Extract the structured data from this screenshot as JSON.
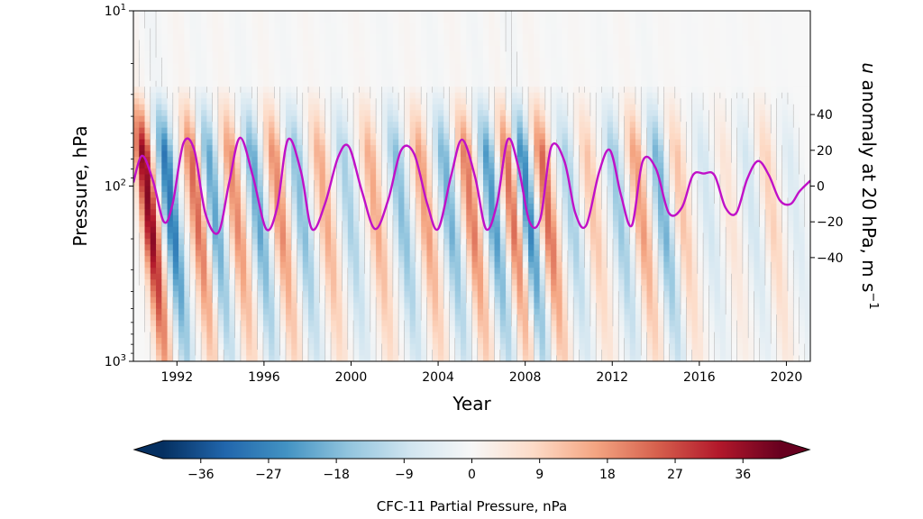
{
  "chart_data": [
    {
      "type": "heatmap",
      "title": "",
      "xlabel": "Year",
      "ylabel": "Pressure, hPa",
      "xlim": [
        1990.0,
        2021.1
      ],
      "ylim": [
        1000,
        10
      ],
      "y_scale": "log",
      "x_ticks": [
        1992,
        1996,
        2000,
        2004,
        2008,
        2012,
        2016,
        2020
      ],
      "y_ticks": [
        {
          "value": 10,
          "base": "10",
          "exp": "1"
        },
        {
          "value": 100,
          "base": "10",
          "exp": "2"
        },
        {
          "value": 1000,
          "base": "10",
          "exp": "3"
        }
      ],
      "field_description_values": {
        "quantity": "CFC-11 partial pressure anomaly",
        "oscillation_centers": [
          1990.6,
          1991.6,
          1992.8,
          1993.6,
          1994.6,
          1995.6,
          1996.6,
          1997.6,
          1998.7,
          1999.8,
          2001.0,
          2002.2,
          2003.3,
          2004.4,
          2005.4,
          2006.4,
          2007.3,
          2008.0,
          2008.9,
          2010.0,
          2011.0,
          2012.2,
          2013.2,
          2014.2,
          2015.1,
          2016.3,
          2017.3,
          2018.3,
          2019.2,
          2020.3
        ],
        "oscillation_signs": [
          1,
          -1,
          1,
          -1,
          1,
          -1,
          1,
          -1,
          1,
          -1,
          1,
          -1,
          1,
          -1,
          1,
          -1,
          1,
          -1,
          1,
          -1,
          1,
          -1,
          1,
          -1,
          1,
          -1,
          1,
          -1,
          1,
          -1
        ],
        "peak_amplitudes_nPa": [
          38,
          30,
          24,
          22,
          20,
          22,
          20,
          18,
          16,
          14,
          16,
          18,
          18,
          20,
          22,
          24,
          24,
          28,
          24,
          14,
          12,
          16,
          18,
          20,
          12,
          8,
          6,
          8,
          10,
          6
        ]
      }
    },
    {
      "type": "line",
      "series": [
        {
          "name": "",
          "color": "#c010c8",
          "x": [
            1990.0,
            1990.4,
            1990.9,
            1991.4,
            1991.8,
            1992.3,
            1992.8,
            1993.3,
            1993.9,
            1994.4,
            1994.9,
            1995.5,
            1996.1,
            1996.6,
            1997.1,
            1997.7,
            1998.2,
            1998.8,
            1999.4,
            1999.9,
            2000.5,
            2001.1,
            2001.7,
            2002.3,
            2002.9,
            2003.5,
            2004.0,
            2004.6,
            2005.1,
            2005.7,
            2006.2,
            2006.7,
            2007.2,
            2007.7,
            2008.2,
            2008.7,
            2009.2,
            2009.8,
            2010.3,
            2010.8,
            2011.4,
            2011.9,
            2012.4,
            2012.9,
            2013.4,
            2014.0,
            2014.6,
            2015.2,
            2015.7,
            2016.2,
            2016.7,
            2017.2,
            2017.7,
            2018.2,
            2018.7,
            2019.2,
            2019.7,
            2020.2,
            2020.6,
            2021.1
          ],
          "y": [
            2,
            17,
            3,
            -20,
            -10,
            24,
            20,
            -15,
            -26,
            2,
            27,
            5,
            -24,
            -12,
            26,
            8,
            -24,
            -10,
            16,
            22,
            -3,
            -24,
            -8,
            20,
            18,
            -10,
            -24,
            6,
            26,
            5,
            -24,
            -10,
            26,
            10,
            -20,
            -18,
            22,
            14,
            -15,
            -22,
            8,
            20,
            -5,
            -22,
            14,
            10,
            -15,
            -12,
            6,
            7,
            6,
            -12,
            -15,
            4,
            14,
            6,
            -8,
            -10,
            -3,
            3
          ]
        }
      ],
      "ylabel": "u anomaly at 20 hPa, m s⁻¹",
      "ylabel_parts": {
        "italic": "u",
        "main": " anomaly at 20 hPa, m s",
        "sup": "−1"
      },
      "ylim": [
        -98,
        98
      ],
      "y_ticks": [
        40,
        20,
        0,
        -20,
        -40
      ],
      "y_tick_labels": [
        "40",
        "20",
        "0",
        "−20",
        "−40"
      ]
    },
    {
      "type": "colorbar",
      "label": "CFC-11 Partial Pressure, nPa",
      "colormap": "RdBu_r",
      "range": [
        -41,
        41
      ],
      "extend": "both",
      "ticks": [
        -36,
        -27,
        -18,
        -9,
        0,
        9,
        18,
        27,
        36
      ],
      "tick_labels": [
        "−36",
        "−27",
        "−18",
        "−9",
        "0",
        "9",
        "18",
        "27",
        "36"
      ]
    }
  ]
}
